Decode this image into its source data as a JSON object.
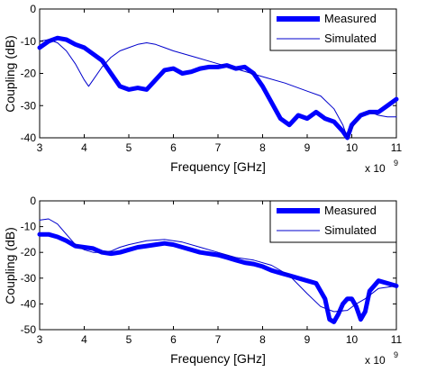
{
  "chart_data": [
    {
      "type": "line",
      "xlabel": "Frequency [GHz]",
      "ylabel": "Coupling (dB)",
      "x_multiplier": "x 10",
      "x_exponent": "9",
      "xlim": [
        3,
        11
      ],
      "ylim": [
        -40,
        0
      ],
      "xticks": [
        3,
        4,
        5,
        6,
        7,
        8,
        9,
        10,
        11
      ],
      "yticks": [
        0,
        -10,
        -20,
        -30,
        -40
      ],
      "legend_position": "top-right",
      "series": [
        {
          "name": "Measured",
          "style": "thick",
          "color": "#0000ff",
          "x": [
            3.0,
            3.2,
            3.4,
            3.6,
            3.8,
            4.0,
            4.2,
            4.4,
            4.6,
            4.8,
            5.0,
            5.2,
            5.4,
            5.6,
            5.8,
            6.0,
            6.2,
            6.4,
            6.6,
            6.8,
            7.0,
            7.2,
            7.4,
            7.6,
            7.8,
            8.0,
            8.2,
            8.4,
            8.6,
            8.8,
            9.0,
            9.2,
            9.4,
            9.6,
            9.8,
            9.9,
            10.0,
            10.2,
            10.4,
            10.6,
            10.8,
            11.0
          ],
          "y": [
            -12,
            -10,
            -9,
            -9.5,
            -11,
            -12,
            -14,
            -16,
            -20,
            -24,
            -25,
            -24.5,
            -25,
            -22,
            -19,
            -18.5,
            -20,
            -19.5,
            -18.5,
            -18,
            -18,
            -17.5,
            -18.5,
            -18,
            -20,
            -24,
            -29,
            -34,
            -36,
            -33,
            -34,
            -32,
            -34,
            -35,
            -38,
            -40,
            -36,
            -33,
            -32,
            -32,
            -30,
            -28
          ]
        },
        {
          "name": "Simulated",
          "style": "thin",
          "color": "#0000cc",
          "x": [
            3.0,
            3.2,
            3.4,
            3.6,
            3.8,
            4.0,
            4.1,
            4.2,
            4.4,
            4.6,
            4.8,
            5.0,
            5.2,
            5.4,
            5.6,
            5.8,
            6.0,
            6.5,
            7.0,
            7.5,
            8.0,
            8.5,
            9.0,
            9.3,
            9.6,
            9.8,
            9.9,
            10.0,
            10.2,
            10.4,
            10.6,
            10.8,
            11.0
          ],
          "y": [
            -10,
            -9.5,
            -10.5,
            -13,
            -17,
            -22,
            -24,
            -22,
            -18,
            -15,
            -13,
            -12,
            -11,
            -10.5,
            -11,
            -12,
            -13,
            -15,
            -17,
            -19,
            -21,
            -23,
            -25.5,
            -27,
            -31,
            -36,
            -40,
            -37,
            -33,
            -32,
            -33,
            -33.5,
            -33.5
          ]
        }
      ]
    },
    {
      "type": "line",
      "xlabel": "Frequency [GHz]",
      "ylabel": "Coupling (dB)",
      "x_multiplier": "x 10",
      "x_exponent": "9",
      "xlim": [
        3,
        11
      ],
      "ylim": [
        -50,
        0
      ],
      "xticks": [
        3,
        4,
        5,
        6,
        7,
        8,
        9,
        10,
        11
      ],
      "yticks": [
        0,
        -10,
        -20,
        -30,
        -40,
        -50
      ],
      "legend_position": "top-right",
      "series": [
        {
          "name": "Measured",
          "style": "thick",
          "color": "#0000ff",
          "x": [
            3.0,
            3.2,
            3.4,
            3.6,
            3.8,
            4.0,
            4.2,
            4.4,
            4.6,
            4.8,
            5.0,
            5.2,
            5.4,
            5.6,
            5.8,
            6.0,
            6.2,
            6.4,
            6.6,
            6.8,
            7.0,
            7.2,
            7.4,
            7.6,
            7.8,
            8.0,
            8.2,
            8.4,
            8.6,
            8.8,
            9.0,
            9.2,
            9.4,
            9.5,
            9.6,
            9.7,
            9.8,
            9.9,
            10.0,
            10.1,
            10.2,
            10.3,
            10.4,
            10.6,
            10.8,
            11.0
          ],
          "y": [
            -13,
            -13,
            -14,
            -15.5,
            -17.5,
            -18,
            -18.5,
            -20,
            -20.5,
            -20,
            -19,
            -18,
            -17.5,
            -17,
            -16.5,
            -17,
            -18,
            -19,
            -20,
            -20.5,
            -21,
            -22,
            -23,
            -24,
            -24.5,
            -25.5,
            -27,
            -28,
            -29,
            -30,
            -31,
            -32,
            -38,
            -46,
            -47,
            -44,
            -40,
            -38,
            -38,
            -41,
            -46,
            -43,
            -35,
            -31,
            -32,
            -33
          ]
        },
        {
          "name": "Simulated",
          "style": "thin",
          "color": "#0000cc",
          "x": [
            3.0,
            3.2,
            3.4,
            3.6,
            3.8,
            4.0,
            4.2,
            4.4,
            4.6,
            4.8,
            5.0,
            5.4,
            5.8,
            6.2,
            6.6,
            7.0,
            7.4,
            7.8,
            8.2,
            8.6,
            9.0,
            9.3,
            9.6,
            9.9,
            10.1,
            10.3,
            10.6,
            11.0
          ],
          "y": [
            -7.5,
            -7,
            -9,
            -13,
            -17,
            -19,
            -20,
            -20,
            -19.5,
            -18,
            -17,
            -15.5,
            -15,
            -16,
            -18,
            -20,
            -22,
            -23,
            -25,
            -29,
            -36,
            -41,
            -43,
            -42.5,
            -40,
            -38,
            -34,
            -33
          ]
        }
      ]
    }
  ]
}
